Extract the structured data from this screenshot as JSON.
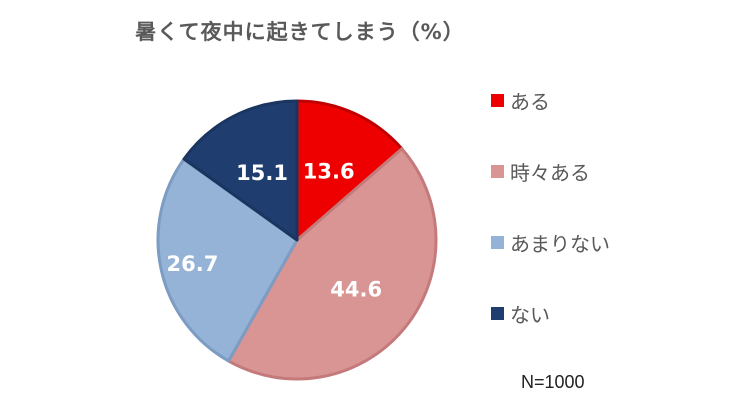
{
  "chart_data": {
    "type": "pie",
    "title": "暑くて夜中に起きてしまう（%）",
    "categories": [
      "ある",
      "時々ある",
      "あまりない",
      "ない"
    ],
    "values": [
      13.6,
      44.6,
      26.7,
      15.1
    ],
    "labels": [
      "13.6",
      "44.6",
      "26.7",
      "15.1"
    ],
    "colors": [
      "#ee0000",
      "#d99594",
      "#95b3d7",
      "#1f3d6e"
    ],
    "label_colors": [
      "#ffffff",
      "#ffffff",
      "#ffffff",
      "#ffffff"
    ],
    "legend_position": "right",
    "note": "N=1000"
  }
}
